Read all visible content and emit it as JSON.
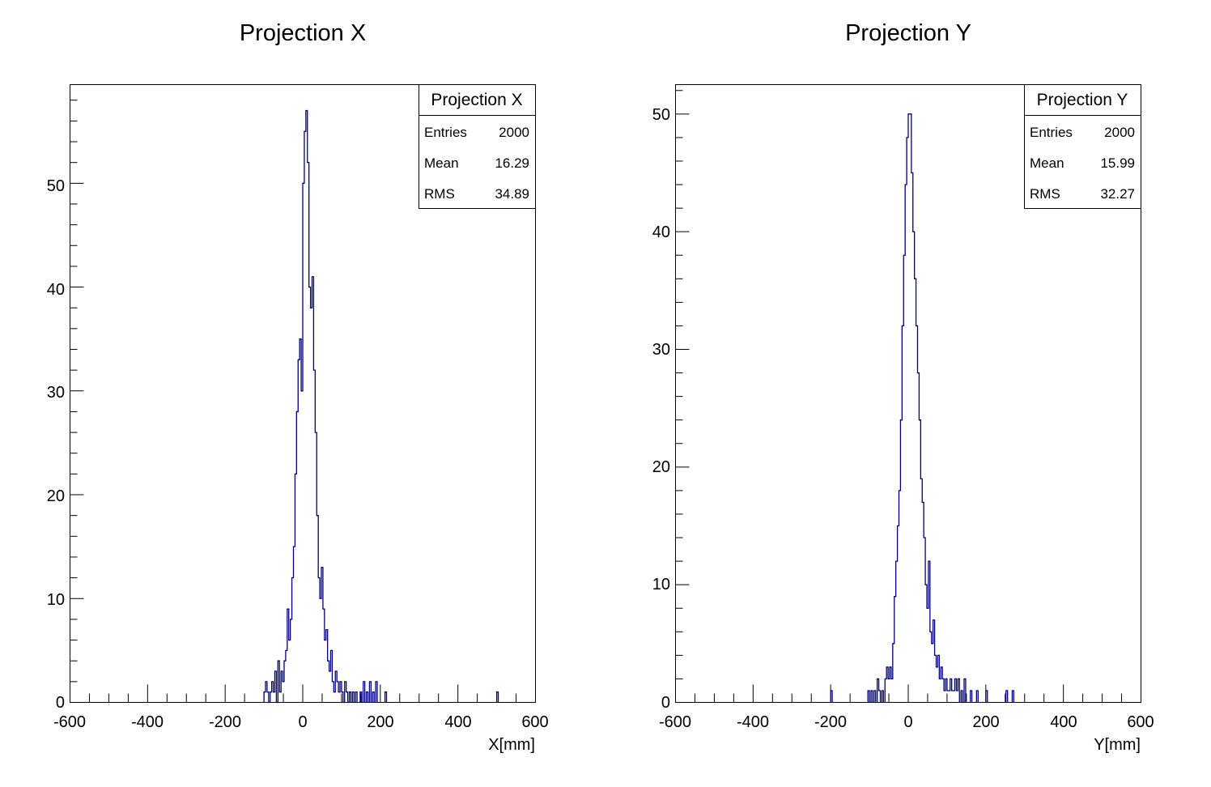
{
  "chart_data": [
    {
      "type": "bar",
      "title": "Projection X",
      "xlabel": "X[mm]",
      "ylabel": "",
      "xlim": [
        -600,
        600
      ],
      "ylim": [
        0,
        59.5
      ],
      "x_ticks": [
        "-600",
        "-400",
        "-200",
        "0",
        "200",
        "400",
        "600"
      ],
      "y_ticks": [
        "0",
        "10",
        "20",
        "30",
        "40",
        "50"
      ],
      "bin_width": 4,
      "stats": {
        "title": "Projection X",
        "rows": [
          {
            "label": "Entries",
            "value": "2000"
          },
          {
            "label": "Mean",
            "value": "16.29"
          },
          {
            "label": "RMS",
            "value": "34.89"
          }
        ]
      },
      "bins": [
        [
          -100,
          1
        ],
        [
          -96,
          2
        ],
        [
          -92,
          1
        ],
        [
          -88,
          0
        ],
        [
          -84,
          1
        ],
        [
          -80,
          2
        ],
        [
          -76,
          1
        ],
        [
          -72,
          3
        ],
        [
          -68,
          0
        ],
        [
          -64,
          4
        ],
        [
          -60,
          1
        ],
        [
          -56,
          3
        ],
        [
          -52,
          2
        ],
        [
          -48,
          4
        ],
        [
          -44,
          5
        ],
        [
          -40,
          9
        ],
        [
          -36,
          6
        ],
        [
          -32,
          8
        ],
        [
          -28,
          12
        ],
        [
          -24,
          15
        ],
        [
          -20,
          22
        ],
        [
          -16,
          28
        ],
        [
          -12,
          33
        ],
        [
          -8,
          35
        ],
        [
          -4,
          30
        ],
        [
          0,
          50
        ],
        [
          4,
          55
        ],
        [
          8,
          57
        ],
        [
          12,
          52
        ],
        [
          16,
          40
        ],
        [
          20,
          38
        ],
        [
          24,
          41
        ],
        [
          28,
          32
        ],
        [
          32,
          26
        ],
        [
          36,
          18
        ],
        [
          40,
          12
        ],
        [
          44,
          10
        ],
        [
          48,
          13
        ],
        [
          52,
          9
        ],
        [
          56,
          6
        ],
        [
          60,
          7
        ],
        [
          64,
          4
        ],
        [
          68,
          3
        ],
        [
          72,
          5
        ],
        [
          76,
          2
        ],
        [
          80,
          1
        ],
        [
          84,
          3
        ],
        [
          88,
          2
        ],
        [
          92,
          1
        ],
        [
          96,
          2
        ],
        [
          100,
          1
        ],
        [
          104,
          0
        ],
        [
          108,
          2
        ],
        [
          112,
          1
        ],
        [
          116,
          0
        ],
        [
          120,
          1
        ],
        [
          128,
          1
        ],
        [
          136,
          1
        ],
        [
          148,
          1
        ],
        [
          156,
          2
        ],
        [
          164,
          1
        ],
        [
          172,
          2
        ],
        [
          180,
          1
        ],
        [
          188,
          2
        ],
        [
          212,
          1
        ],
        [
          500,
          1
        ]
      ]
    },
    {
      "type": "bar",
      "title": "Projection Y",
      "xlabel": "Y[mm]",
      "ylabel": "",
      "xlim": [
        -600,
        600
      ],
      "ylim": [
        0,
        52.5
      ],
      "x_ticks": [
        "-600",
        "-400",
        "-200",
        "0",
        "200",
        "400",
        "600"
      ],
      "y_ticks": [
        "0",
        "10",
        "20",
        "30",
        "40",
        "50"
      ],
      "bin_width": 4,
      "stats": {
        "title": "Projection Y",
        "rows": [
          {
            "label": "Entries",
            "value": "2000"
          },
          {
            "label": "Mean",
            "value": "15.99"
          },
          {
            "label": "RMS",
            "value": "32.27"
          }
        ]
      },
      "bins": [
        [
          -200,
          1
        ],
        [
          -104,
          1
        ],
        [
          -96,
          1
        ],
        [
          -88,
          1
        ],
        [
          -80,
          2
        ],
        [
          -76,
          1
        ],
        [
          -68,
          1
        ],
        [
          -60,
          2
        ],
        [
          -56,
          3
        ],
        [
          -52,
          2
        ],
        [
          -48,
          3
        ],
        [
          -44,
          2
        ],
        [
          -40,
          5
        ],
        [
          -36,
          9
        ],
        [
          -32,
          12
        ],
        [
          -28,
          15
        ],
        [
          -24,
          18
        ],
        [
          -20,
          24
        ],
        [
          -16,
          32
        ],
        [
          -12,
          38
        ],
        [
          -8,
          44
        ],
        [
          -4,
          48
        ],
        [
          0,
          50
        ],
        [
          4,
          50
        ],
        [
          8,
          45
        ],
        [
          12,
          40
        ],
        [
          16,
          36
        ],
        [
          20,
          32
        ],
        [
          24,
          28
        ],
        [
          28,
          24
        ],
        [
          32,
          19
        ],
        [
          36,
          17
        ],
        [
          40,
          14
        ],
        [
          44,
          10
        ],
        [
          48,
          8
        ],
        [
          52,
          12
        ],
        [
          56,
          6
        ],
        [
          60,
          5
        ],
        [
          64,
          7
        ],
        [
          68,
          4
        ],
        [
          72,
          3
        ],
        [
          76,
          4
        ],
        [
          80,
          2
        ],
        [
          84,
          3
        ],
        [
          88,
          2
        ],
        [
          92,
          1
        ],
        [
          96,
          2
        ],
        [
          100,
          1
        ],
        [
          104,
          1
        ],
        [
          108,
          2
        ],
        [
          112,
          1
        ],
        [
          116,
          1
        ],
        [
          120,
          2
        ],
        [
          124,
          1
        ],
        [
          128,
          2
        ],
        [
          136,
          1
        ],
        [
          144,
          2
        ],
        [
          160,
          1
        ],
        [
          176,
          1
        ],
        [
          200,
          1
        ],
        [
          252,
          1
        ],
        [
          268,
          1
        ]
      ]
    }
  ]
}
